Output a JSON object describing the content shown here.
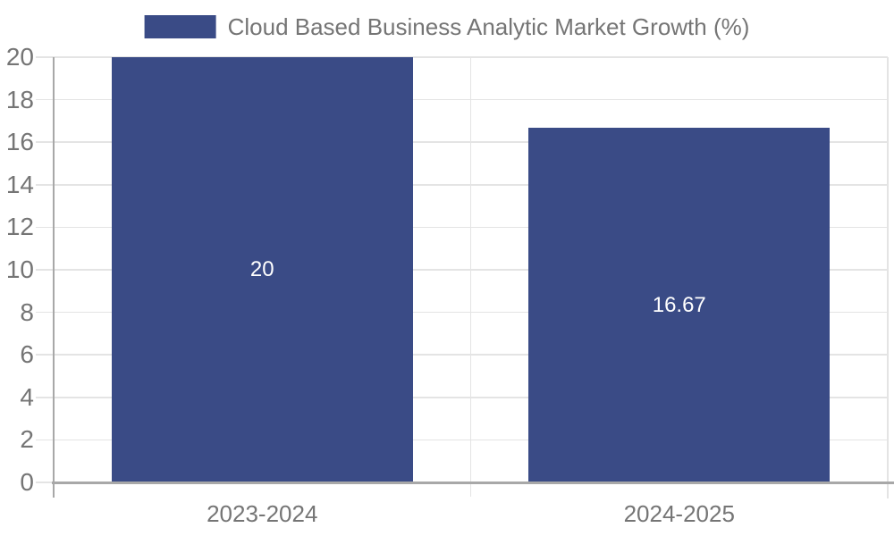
{
  "legend": {
    "label": "Cloud Based Business Analytic Market Growth (%)"
  },
  "chart_data": {
    "type": "bar",
    "title": "Cloud Based Business Analytic Market Growth (%)",
    "categories": [
      "2023-2024",
      "2024-2025"
    ],
    "values": [
      20,
      16.67
    ],
    "value_labels": [
      "20",
      "16.67"
    ],
    "xlabel": "",
    "ylabel": "",
    "ylim": [
      0,
      20
    ],
    "yticks": [
      0,
      2,
      4,
      6,
      8,
      10,
      12,
      14,
      16,
      18,
      20
    ],
    "grid": true,
    "legend_position": "top-center",
    "colors": {
      "bar": "#3A4B86",
      "text": "#757575",
      "gridline": "#e4e4e4",
      "axis": "#a8a8a8",
      "value_label": "#ffffff"
    }
  }
}
